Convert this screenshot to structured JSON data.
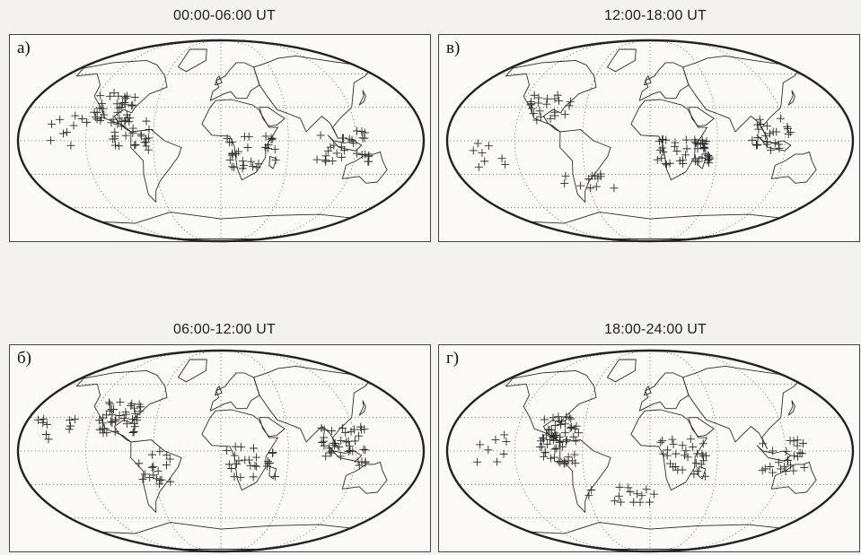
{
  "panels": [
    {
      "label": "a)",
      "title": "00:00-06:00 UT"
    },
    {
      "label": "в)",
      "title": "12:00-18:00 UT"
    },
    {
      "label": "б)",
      "title": "06:00-12:00 UT"
    },
    {
      "label": "г)",
      "title": "18:00-24:00 UT"
    }
  ],
  "style": {
    "ink": "#2b2b2b",
    "paper": "#fbfaf7",
    "grid": "#555555"
  }
}
